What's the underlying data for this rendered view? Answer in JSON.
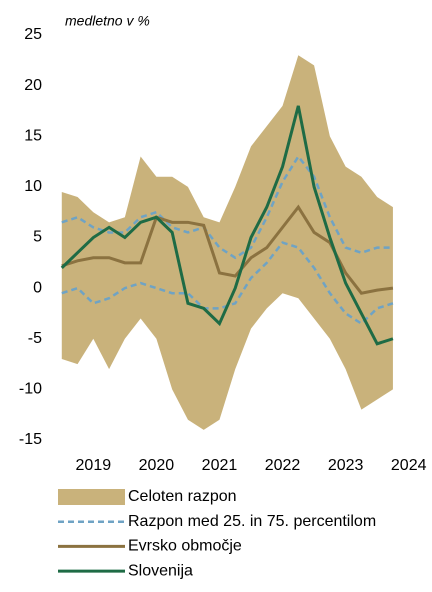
{
  "chart_data": {
    "type": "line",
    "subtitle": "medletno v %",
    "x": [
      2018.5,
      2018.75,
      2019,
      2019.25,
      2019.5,
      2019.75,
      2020,
      2020.25,
      2020.5,
      2020.75,
      2021,
      2021.25,
      2021.5,
      2021.75,
      2022,
      2022.25,
      2022.5,
      2022.75,
      2023,
      2023.25,
      2023.5,
      2023.75
    ],
    "xlim": [
      2018.44,
      2024.1
    ],
    "xticks": [
      2019,
      2020,
      2021,
      2022,
      2023,
      2024
    ],
    "ylim": [
      -15,
      25
    ],
    "yticks": [
      -15,
      -10,
      -5,
      0,
      5,
      10,
      15,
      20,
      25
    ],
    "series": [
      {
        "name": "Celoten razpon",
        "color": "#c9b27b",
        "high": [
          9.5,
          9,
          7.5,
          6.5,
          7,
          13,
          11,
          11,
          10,
          7,
          6.5,
          10,
          14,
          16,
          18,
          23,
          22,
          15,
          12,
          11,
          9,
          8
        ],
        "low": [
          -7,
          -7.5,
          -5,
          -8,
          -5,
          -3,
          -5,
          -10,
          -13,
          -14,
          -13,
          -8,
          -4,
          -2,
          -0.5,
          -1,
          -3,
          -5,
          -8,
          -12,
          -11,
          -10
        ]
      },
      {
        "name": "Razpon med 25. in 75. percentilom",
        "color": "#6fa3c4",
        "dash": true,
        "high": [
          6.5,
          7,
          6,
          5.5,
          5.5,
          7,
          7.5,
          6,
          5.5,
          6,
          4,
          3,
          4,
          7,
          10.5,
          13,
          11,
          7,
          4,
          3.5,
          4,
          4
        ],
        "low": [
          -0.5,
          0,
          -1.5,
          -1,
          0,
          0.5,
          0,
          -0.5,
          -0.5,
          -2,
          -2,
          -1.5,
          1,
          2.5,
          4.5,
          4,
          2,
          -0.5,
          -2.5,
          -3.5,
          -2,
          -1.5
        ]
      },
      {
        "name": "Evrsko območje",
        "color": "#8b7240",
        "values": [
          2.2,
          2.7,
          3,
          3,
          2.5,
          2.5,
          7,
          6.5,
          6.5,
          6.2,
          1.5,
          1.2,
          3,
          4,
          6,
          8,
          5.5,
          4.5,
          1.5,
          -0.5,
          -0.2,
          0
        ]
      },
      {
        "name": "Slovenija",
        "color": "#1e6b45",
        "values": [
          2,
          3.5,
          5,
          6,
          5,
          6.5,
          7,
          5.5,
          -1.5,
          -2,
          -3.5,
          0,
          5,
          8,
          12,
          18,
          10,
          5,
          0.5,
          -2.5,
          -5.5,
          -5
        ]
      }
    ]
  }
}
